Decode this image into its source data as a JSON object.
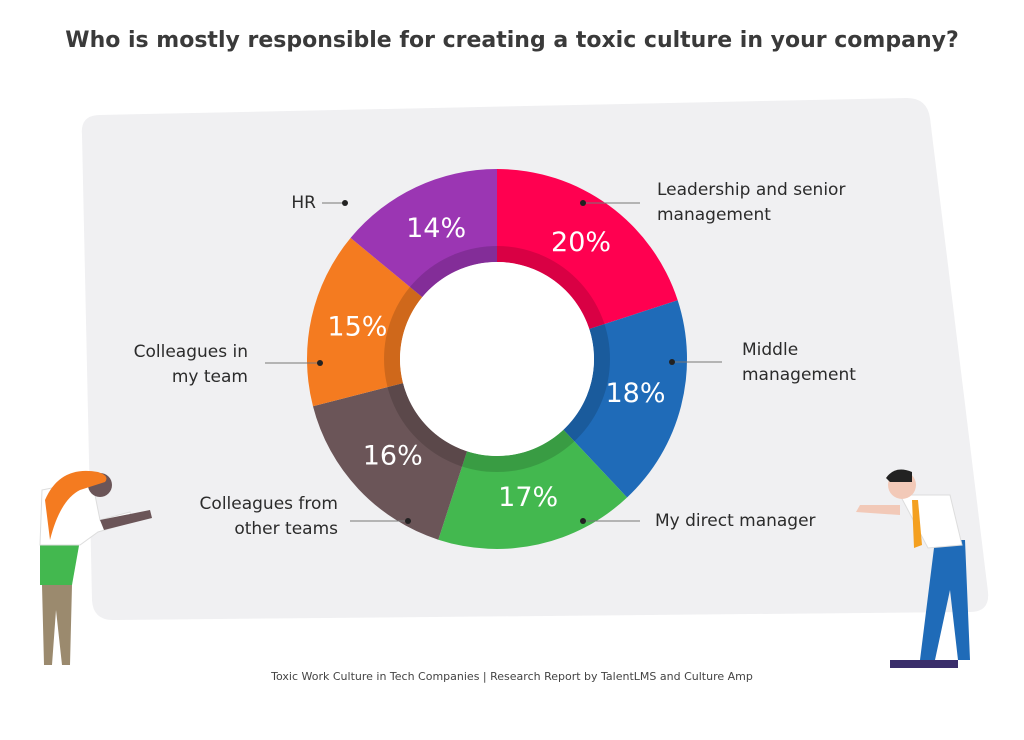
{
  "chart_data": {
    "type": "donut",
    "title": "Who is mostly responsible for creating a toxic culture in your company?",
    "categories": [
      "Leadership and senior management",
      "Middle management",
      "My direct manager",
      "Colleagues from other teams",
      "Colleagues in my team",
      "HR"
    ],
    "values": [
      20,
      18,
      17,
      16,
      15,
      14
    ],
    "value_labels": [
      "20%",
      "18%",
      "17%",
      "16%",
      "15%",
      "14%"
    ],
    "colors": [
      "#ff0050",
      "#1f6bb8",
      "#43b84f",
      "#6b5558",
      "#f47b20",
      "#9b36b3"
    ],
    "source": "Toxic Work Culture in Tech Companies | Research Report by TalentLMS and Culture Amp"
  }
}
